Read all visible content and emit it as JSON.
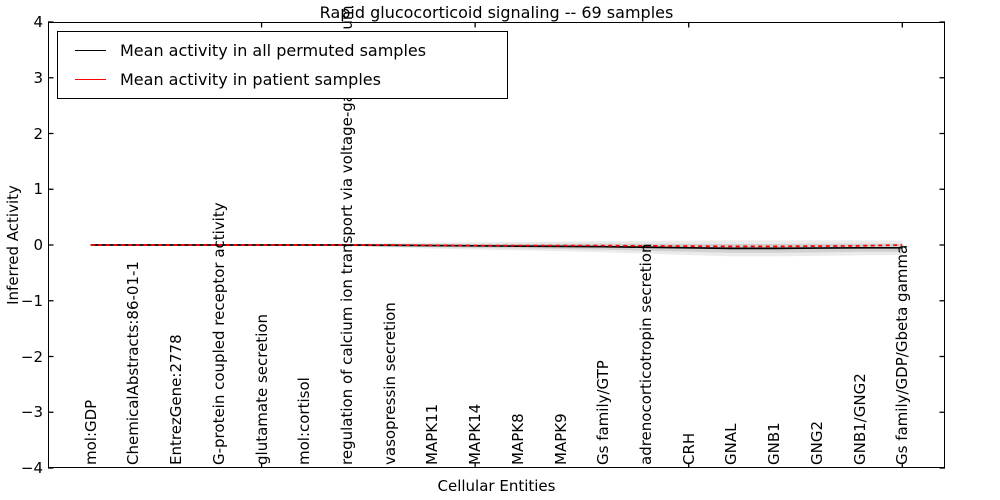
{
  "chart_data": {
    "type": "line",
    "title": "Rapid glucocorticoid signaling -- 69 samples",
    "xlabel": "Cellular Entities",
    "ylabel": "Inferred Activity",
    "ylim": [
      -4,
      4
    ],
    "xlim": [
      0,
      21
    ],
    "yticks": [
      4,
      3,
      2,
      1,
      0,
      -1,
      -2,
      -3,
      -4
    ],
    "top_axis_tick_positions": [
      5,
      10,
      15,
      20
    ],
    "grid": false,
    "categories": [
      "mol:GDP",
      "ChemicalAbstracts:86-01-1",
      "EntrezGene:2778",
      "G-protein coupled receptor activity",
      "glutamate secretion",
      "mol:cortisol",
      "regulation of calcium ion transport via voltage-gated calcium channel",
      "vasopressin secretion",
      "MAPK11",
      "MAPK14",
      "MAPK8",
      "MAPK9",
      "Gs family/GTP",
      "adrenocorticotropin secretion",
      "CRH",
      "GNAL",
      "GNB1",
      "GNG2",
      "GNB1/GNG2",
      "Gs family/GDP/Gbeta gamma"
    ],
    "series": [
      {
        "name": "Mean activity in all permuted samples",
        "color": "#000000",
        "style": "solid",
        "values": [
          0.0,
          0.0,
          0.0,
          0.0,
          0.0,
          0.0,
          0.0,
          -0.005,
          -0.01,
          -0.015,
          -0.02,
          -0.025,
          -0.03,
          -0.04,
          -0.05,
          -0.06,
          -0.06,
          -0.055,
          -0.05,
          -0.05
        ]
      },
      {
        "name": "Mean activity in patient samples",
        "color": "#ff0000",
        "style": "dashed",
        "values": [
          0.0,
          0.0,
          0.0,
          0.0,
          0.0,
          0.0,
          0.0,
          0.0,
          -0.005,
          -0.01,
          -0.01,
          -0.01,
          -0.01,
          -0.015,
          -0.02,
          -0.025,
          -0.025,
          -0.02,
          -0.015,
          0.0
        ]
      }
    ],
    "band": {
      "description": "gray uncertainty band around permuted-sample mean",
      "color": "#000000",
      "half_widths": [
        0.012,
        0.012,
        0.012,
        0.012,
        0.012,
        0.012,
        0.02,
        0.04,
        0.055,
        0.065,
        0.075,
        0.085,
        0.1,
        0.115,
        0.13,
        0.145,
        0.145,
        0.14,
        0.135,
        0.13
      ]
    },
    "legend": {
      "position": "upper left"
    }
  }
}
